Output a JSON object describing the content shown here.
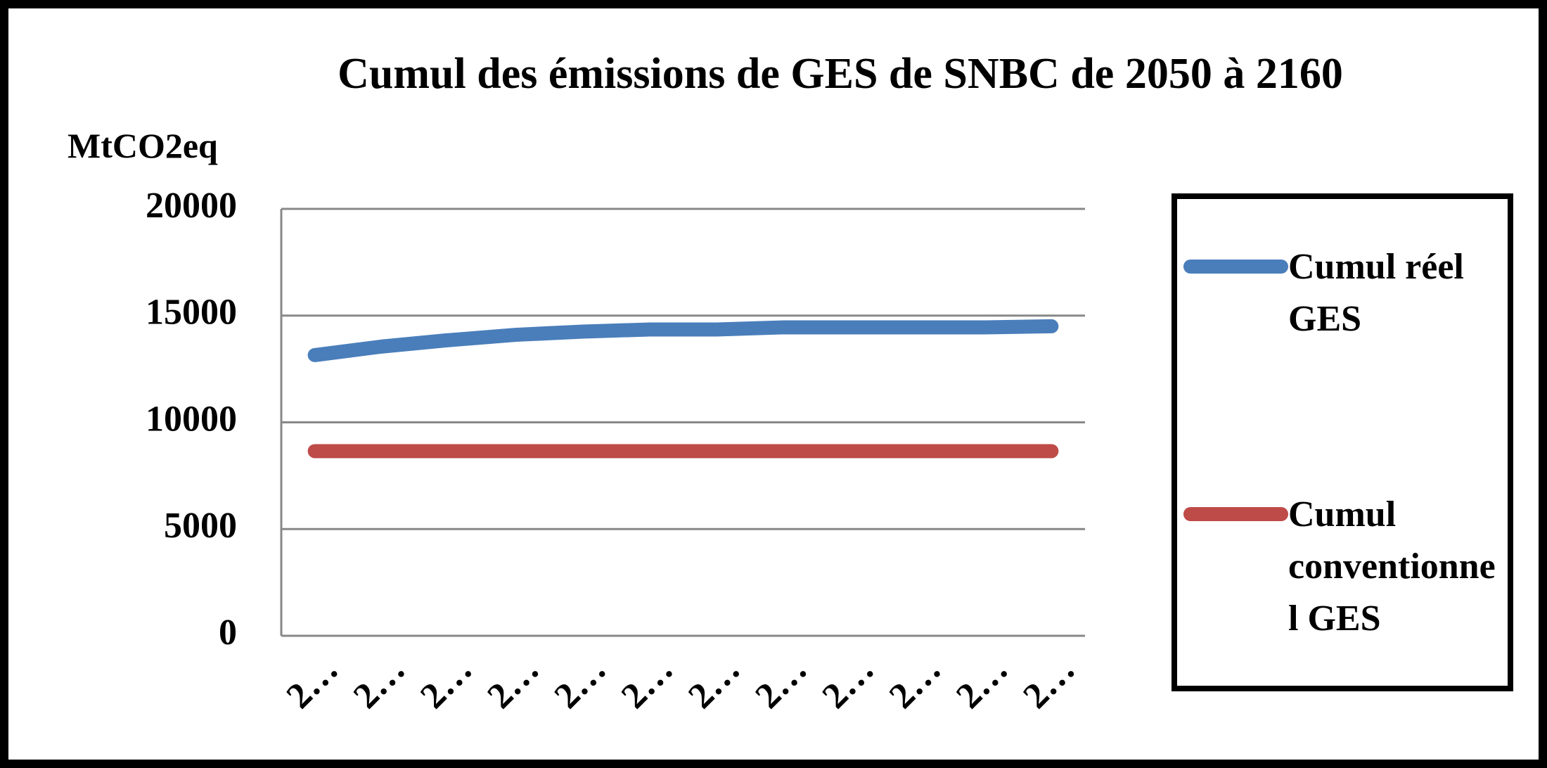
{
  "chart_data": {
    "type": "line",
    "title": "Cumul des émissions de GES de SNBC de 2050 à 2160",
    "y_label": "MtCO2eq",
    "categories": [
      "2…",
      "2…",
      "2…",
      "2…",
      "2…",
      "2…",
      "2…",
      "2…",
      "2…",
      "2…",
      "2…",
      "2…"
    ],
    "series": [
      {
        "name": "Cumul réel GES",
        "color": "#4a7ebb",
        "values": [
          13150,
          13550,
          13850,
          14100,
          14250,
          14350,
          14350,
          14450,
          14450,
          14450,
          14450,
          14500
        ]
      },
      {
        "name": "Cumul conventionnel GES",
        "color": "#be4b48",
        "values": [
          8650,
          8650,
          8650,
          8650,
          8650,
          8650,
          8650,
          8650,
          8650,
          8650,
          8650,
          8650
        ]
      }
    ],
    "ylim": [
      0,
      20000
    ],
    "yticks": [
      0,
      5000,
      10000,
      15000,
      20000
    ],
    "grid": true,
    "legend": "right"
  }
}
